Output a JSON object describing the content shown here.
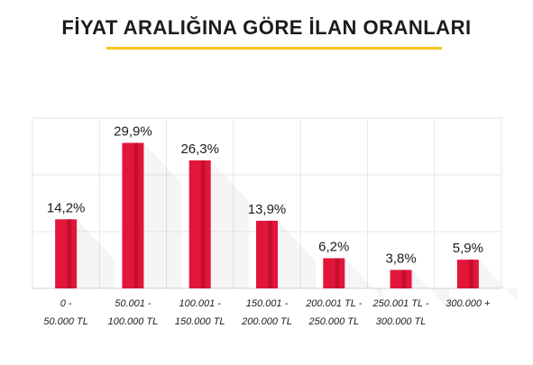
{
  "title": "FİYAT ARALIĞINA GÖRE İLAN ORANLARI",
  "colors": {
    "accent_underline": "#f4c51c",
    "bar_main": "#e2163a",
    "bar_dark": "#c40f2e",
    "grid": "#e6e6e6",
    "text": "#1c1c1c"
  },
  "chart_data": {
    "type": "bar",
    "title": "FİYAT ARALIĞINA GÖRE İLAN ORANLARI",
    "categories": [
      [
        "0 -",
        "50.000 TL"
      ],
      [
        "50.001 -",
        "100.000 TL"
      ],
      [
        "100.001 -",
        "150.000 TL"
      ],
      [
        "150.001 -",
        "200.000 TL"
      ],
      [
        "200.001 TL -",
        "250.000 TL"
      ],
      [
        "250.001 TL -",
        "300.000 TL"
      ],
      [
        "300.000 +"
      ]
    ],
    "values": [
      14.2,
      29.9,
      26.3,
      13.9,
      6.2,
      3.8,
      5.9
    ],
    "value_labels": [
      "14,2%",
      "29,9%",
      "26,3%",
      "13,9%",
      "6,2%",
      "3,8%",
      "5,9%"
    ],
    "ylim": [
      0,
      35
    ],
    "grid": true,
    "legend": "none",
    "xlabel": "",
    "ylabel": ""
  }
}
